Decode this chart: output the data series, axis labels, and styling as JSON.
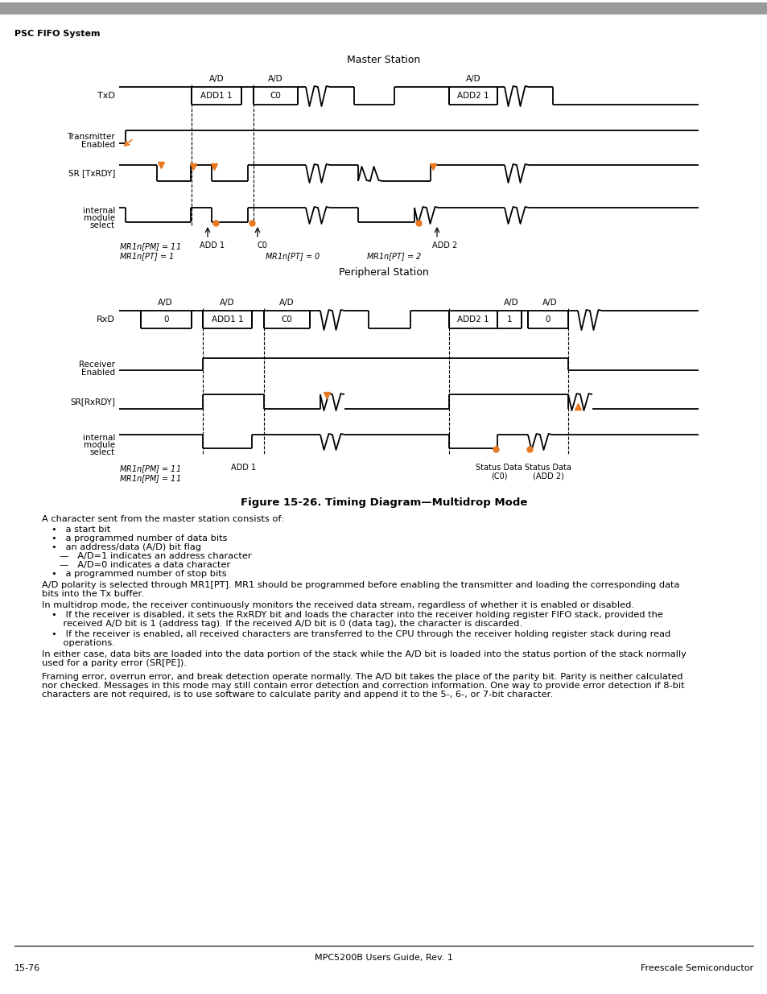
{
  "title": "Figure 15-26. Timing Diagram—Multidrop Mode",
  "header_text": "PSC FIFO System",
  "master_station_label": "Master Station",
  "peripheral_station_label": "Peripheral Station",
  "footer_text": "MPC5200B Users Guide, Rev. 1",
  "footer_right": "Freescale Semiconductor",
  "page_label": "15-76",
  "bg_color": "#ffffff",
  "gray_bar_color": "#a0a0a0",
  "signal_color": "#000000",
  "orange_color": "#e87820"
}
